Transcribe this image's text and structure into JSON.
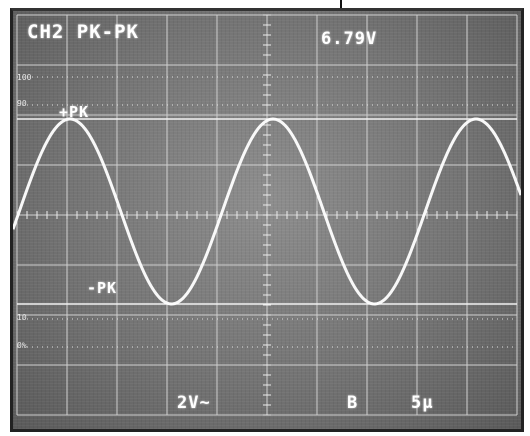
{
  "header": {
    "channel_mode": "CH2 PK-PK",
    "measurement": "6.79V"
  },
  "cursors": {
    "upper_label": "+PK",
    "lower_label": "-PK"
  },
  "graticule": {
    "mark_100": "100",
    "mark_90": "90",
    "mark_10": "10",
    "mark_0": "0%"
  },
  "footer": {
    "volts_per_div": "2V~",
    "channel_marker": "B",
    "time_per_div": "5µ"
  },
  "colors": {
    "trace": "#ffffff",
    "grid": "#cfcfcf",
    "screen_bg": "#7d7d7d"
  }
}
